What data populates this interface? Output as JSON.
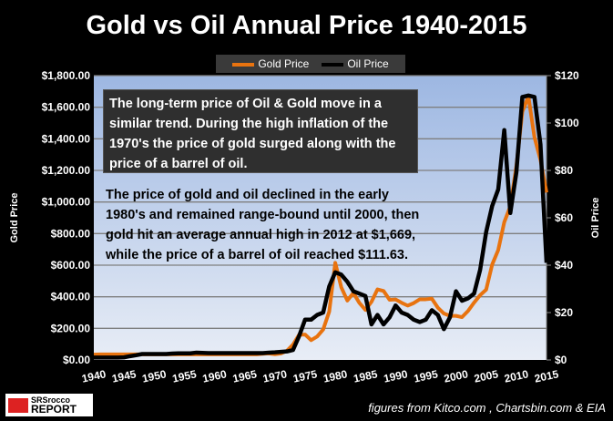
{
  "chart_data": {
    "type": "line",
    "title": "Gold vs Oil Annual Price 1940-2015",
    "ylabel": "Gold  Price",
    "y2label": "Oil Price",
    "ylim": [
      0,
      1800
    ],
    "y2lim": [
      0,
      120
    ],
    "xlim": [
      1940,
      2015
    ],
    "xticks": [
      "1940",
      "1945",
      "1950",
      "1955",
      "1960",
      "1965",
      "1970",
      "1975",
      "1980",
      "1985",
      "1990",
      "1995",
      "2000",
      "2005",
      "2010",
      "2015"
    ],
    "yticks": [
      "$0.00",
      "$200.00",
      "$400.00",
      "$600.00",
      "$800.00",
      "$1,000.00",
      "$1,200.00",
      "$1,400.00",
      "$1,600.00",
      "$1,800.00"
    ],
    "y2ticks": [
      "$0",
      "$20",
      "$40",
      "$60",
      "$80",
      "$100",
      "$120"
    ],
    "grid": true,
    "legend_position": "top-center",
    "x": [
      1940,
      1941,
      1942,
      1943,
      1944,
      1945,
      1946,
      1947,
      1948,
      1949,
      1950,
      1951,
      1952,
      1953,
      1954,
      1955,
      1956,
      1957,
      1958,
      1959,
      1960,
      1961,
      1962,
      1963,
      1964,
      1965,
      1966,
      1967,
      1968,
      1969,
      1970,
      1971,
      1972,
      1973,
      1974,
      1975,
      1976,
      1977,
      1978,
      1979,
      1980,
      1981,
      1982,
      1983,
      1984,
      1985,
      1986,
      1987,
      1988,
      1989,
      1990,
      1991,
      1992,
      1993,
      1994,
      1995,
      1996,
      1997,
      1998,
      1999,
      2000,
      2001,
      2002,
      2003,
      2004,
      2005,
      2006,
      2007,
      2008,
      2009,
      2010,
      2011,
      2012,
      2013,
      2014,
      2015
    ],
    "series": [
      {
        "name": "Gold Price",
        "axis": "left",
        "color": "#e8730f",
        "values": [
          34,
          35,
          35,
          35,
          35,
          35,
          35,
          35,
          35,
          35,
          35,
          35,
          35,
          35,
          35,
          35,
          35,
          35,
          35,
          35,
          35,
          35,
          35,
          35,
          35,
          35,
          35,
          35,
          39,
          41,
          36,
          41,
          58,
          97,
          159,
          161,
          125,
          148,
          193,
          306,
          615,
          460,
          376,
          424,
          361,
          317,
          368,
          447,
          437,
          381,
          383,
          362,
          344,
          360,
          384,
          384,
          388,
          331,
          294,
          279,
          279,
          271,
          310,
          363,
          410,
          445,
          604,
          696,
          872,
          972,
          1225,
          1572,
          1669,
          1411,
          1266,
          1060
        ]
      },
      {
        "name": "Oil Price",
        "axis": "right",
        "color": "#000000",
        "values": [
          1.0,
          1.0,
          1.0,
          1.0,
          1.0,
          1.1,
          1.6,
          2.0,
          2.5,
          2.5,
          2.5,
          2.5,
          2.5,
          2.7,
          2.8,
          2.8,
          2.8,
          3.1,
          3.0,
          2.9,
          2.9,
          2.9,
          2.9,
          2.9,
          2.9,
          2.9,
          2.9,
          2.9,
          2.9,
          3.1,
          3.2,
          3.4,
          3.6,
          4.2,
          10,
          17,
          17,
          19,
          20,
          31,
          37,
          36,
          33,
          29,
          28,
          27,
          15,
          19,
          15,
          18,
          23,
          20,
          19,
          17,
          16,
          17,
          21,
          19,
          13,
          18,
          29,
          25,
          26,
          28,
          38,
          54,
          65,
          72,
          97,
          62,
          79,
          111,
          111.6,
          111,
          91,
          41
        ]
      }
    ],
    "annotations": [
      "The long-term price of Oil & Gold move  in a similar trend.  During the high inflation of the 1970's the price of gold surged along with the price of a barrel of oil.",
      "The price of gold and oil declined in the early 1980's and remained range-bound until 2000, then gold hit an average annual high in 2012 at $1,669, while the price of a barrel of oil reached $111.63."
    ],
    "source": "figures from Kitco.com , Chartsbin.com  & EIA"
  },
  "logo": {
    "line1": "SRSrocco",
    "line2": "REPORT"
  }
}
